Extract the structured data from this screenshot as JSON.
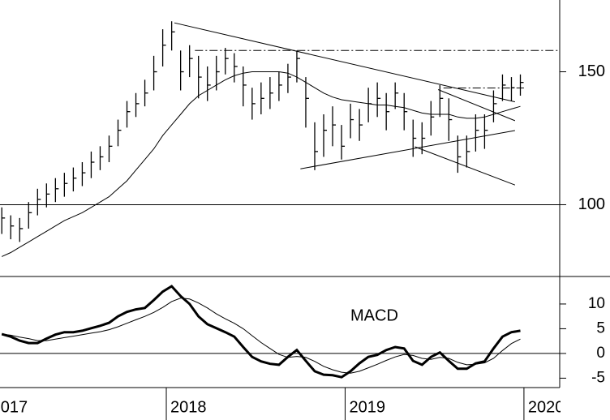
{
  "chart_data": [
    {
      "type": "ohlc",
      "x": [
        2017.08,
        2017.13,
        2017.18,
        2017.23,
        2017.28,
        2017.33,
        2017.38,
        2017.43,
        2017.48,
        2017.53,
        2017.58,
        2017.63,
        2017.68,
        2017.73,
        2017.78,
        2017.83,
        2017.88,
        2017.93,
        2017.98,
        2018.03,
        2018.08,
        2018.13,
        2018.18,
        2018.23,
        2018.28,
        2018.33,
        2018.38,
        2018.43,
        2018.48,
        2018.53,
        2018.58,
        2018.63,
        2018.68,
        2018.73,
        2018.78,
        2018.83,
        2018.88,
        2018.93,
        2018.98,
        2019.03,
        2019.08,
        2019.13,
        2019.18,
        2019.23,
        2019.28,
        2019.33,
        2019.38,
        2019.43,
        2019.48,
        2019.53,
        2019.58,
        2019.63,
        2019.68,
        2019.73,
        2019.78,
        2019.83,
        2019.88,
        2019.93,
        2019.98
      ],
      "high": [
        99,
        96,
        95,
        101,
        106,
        108,
        110,
        112,
        114,
        116,
        120,
        122,
        126,
        132,
        139,
        142,
        147,
        156,
        166,
        169,
        158,
        160,
        156,
        152,
        156,
        159,
        157,
        152,
        144,
        146,
        148,
        150,
        153,
        158,
        148,
        131,
        134,
        137,
        130,
        138,
        136,
        144,
        146,
        142,
        146,
        142,
        132,
        131,
        139,
        145,
        140,
        126,
        126,
        134,
        134,
        143,
        149,
        148,
        149
      ],
      "low": [
        89,
        87,
        86,
        91,
        96,
        99,
        101,
        103,
        105,
        107,
        110,
        113,
        116,
        122,
        129,
        133,
        137,
        143,
        152,
        158,
        143,
        148,
        140,
        139,
        143,
        149,
        146,
        137,
        132,
        134,
        136,
        139,
        142,
        146,
        129,
        113,
        118,
        122,
        117,
        125,
        124,
        131,
        133,
        128,
        136,
        128,
        118,
        119,
        126,
        133,
        124,
        112,
        114,
        120,
        121,
        131,
        139,
        139,
        141
      ],
      "close": [
        95,
        92,
        91,
        97,
        102,
        104,
        106,
        108,
        110,
        112,
        116,
        118,
        122,
        128,
        135,
        138,
        142,
        150,
        160,
        165,
        150,
        155,
        148,
        145,
        150,
        155,
        152,
        145,
        138,
        140,
        142,
        145,
        148,
        155,
        140,
        120,
        128,
        130,
        122,
        132,
        130,
        138,
        140,
        135,
        142,
        135,
        125,
        125,
        133,
        140,
        132,
        118,
        120,
        128,
        128,
        138,
        145,
        144,
        146
      ],
      "ma": [
        80.5,
        82,
        84,
        86,
        88,
        90,
        92,
        94,
        95.5,
        97,
        99,
        101,
        103,
        106,
        109,
        113,
        117,
        121,
        126,
        130,
        134,
        138,
        141,
        143,
        145,
        147,
        148.5,
        149.5,
        150,
        150,
        150,
        150,
        149.5,
        148,
        146,
        144,
        142,
        140.5,
        139.5,
        139,
        138.5,
        138,
        137.5,
        137.5,
        137,
        136.5,
        135.5,
        134.5,
        134,
        134,
        134,
        133,
        132.5,
        132.5,
        133,
        134,
        135,
        136,
        137
      ],
      "trendlines": [
        {
          "x": [
            2018.045,
            2019.95
          ],
          "y": [
            168.4,
            138.7
          ],
          "style": "solid"
        },
        {
          "x": [
            2018.16,
            2020.2
          ],
          "y": [
            158,
            158
          ],
          "style": "dashdot"
        },
        {
          "x": [
            2019.55,
            2020.0
          ],
          "y": [
            143.9,
            143.9
          ],
          "style": "dashdot"
        },
        {
          "x": [
            2018.75,
            2019.95
          ],
          "y": [
            113.5,
            127.9
          ],
          "style": "solid"
        },
        {
          "x": [
            2019.39,
            2019.95
          ],
          "y": [
            121.8,
            107.4
          ],
          "style": "solid"
        },
        {
          "x": [
            2019.52,
            2019.95
          ],
          "y": [
            143.3,
            131.6
          ],
          "style": "solid"
        }
      ],
      "hlines": [
        100
      ],
      "xlim": [
        2017.07,
        2020.2
      ],
      "ylim": [
        73,
        177
      ],
      "yticks": [
        100,
        150
      ]
    },
    {
      "type": "line",
      "title": "MACD",
      "values": [
        3.9,
        3.4,
        2.6,
        2.1,
        2.1,
        3,
        3.8,
        4.3,
        4.3,
        4.6,
        5.1,
        5.6,
        6.2,
        7.5,
        8.4,
        8.9,
        9.2,
        10.8,
        12.5,
        13.6,
        11.6,
        10,
        7.5,
        5.9,
        5.1,
        4.3,
        3.4,
        1.3,
        -0.7,
        -1.6,
        -2.1,
        -2.3,
        -0.7,
        0.7,
        -1.5,
        -3.6,
        -4.3,
        -4.4,
        -4.8,
        -3.6,
        -2,
        -0.7,
        -0.3,
        0.7,
        1.3,
        1,
        -1.5,
        -2.3,
        -0.7,
        0.2,
        -1.5,
        -3.1,
        -3.1,
        -2,
        -1.6,
        1,
        3.4,
        4.3,
        4.6
      ],
      "signal": [
        3.9,
        3.7,
        3.3,
        3.0,
        2.6,
        2.6,
        2.9,
        3.2,
        3.5,
        3.8,
        4.1,
        4.4,
        4.8,
        5.4,
        6.1,
        6.8,
        7.5,
        8.3,
        9.3,
        10.5,
        11.2,
        11,
        10.2,
        9.2,
        8.0,
        7.0,
        6.1,
        5.0,
        3.6,
        2.2,
        1.0,
        -0.2,
        -0.8,
        -0.6,
        -0.8,
        -1.6,
        -2.6,
        -3.3,
        -3.8,
        -4.0,
        -3.6,
        -2.9,
        -2.2,
        -1.4,
        -0.7,
        -0.2,
        -0.4,
        -1.0,
        -1.2,
        -0.8,
        -1.0,
        -1.8,
        -2.3,
        -2.2,
        -1.9,
        -1.0,
        0.6,
        2.0,
        2.9
      ],
      "hlines": [
        0
      ],
      "xlim": [
        2017.07,
        2020.2
      ],
      "xticks": [
        2017,
        2018,
        2019,
        2020
      ],
      "ylim": [
        -6.9,
        15.4
      ],
      "yticks": [
        -5,
        0,
        5,
        10
      ]
    }
  ]
}
